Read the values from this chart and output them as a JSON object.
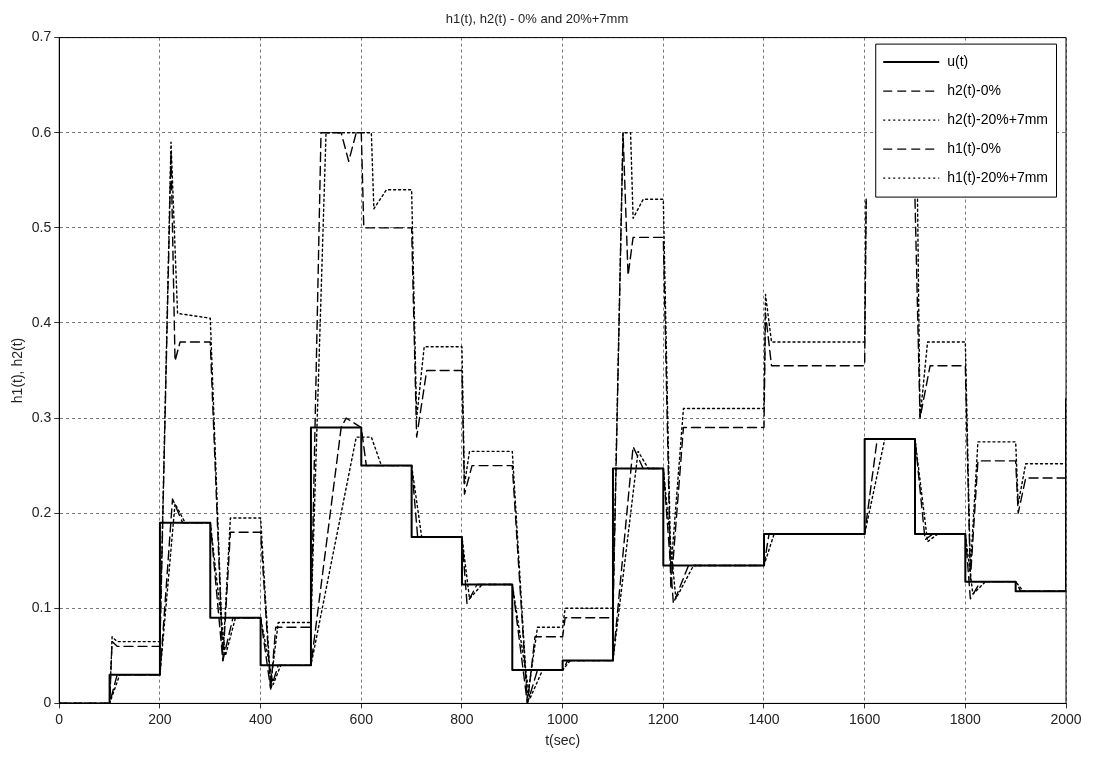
{
  "chart_data": {
    "type": "line",
    "title": "h1(t), h2(t) - 0% and 20%+7mm",
    "xlabel": "t(sec)",
    "ylabel": "h1(t), h2(t)",
    "xlim": [
      0,
      2000
    ],
    "xticks": [
      0,
      200,
      400,
      600,
      800,
      1000,
      1200,
      1400,
      1600,
      1800,
      2000
    ],
    "ylim": [
      0,
      0.7
    ],
    "yticks": [
      0,
      0.1,
      0.2,
      0.3,
      0.4,
      0.5,
      0.6,
      0.7
    ],
    "grid": true,
    "legend": "top right",
    "marker": "none",
    "series": [
      {
        "name": "u(t)",
        "color": "#000000",
        "line_style": "solid",
        "x": [
          0,
          100,
          100,
          200,
          200,
          300,
          300,
          400,
          400,
          500,
          500,
          600,
          600,
          700,
          700,
          800,
          800,
          900,
          900,
          1000,
          1000,
          1100,
          1100,
          1200,
          1200,
          1400,
          1400,
          1600,
          1600,
          1700,
          1700,
          1800,
          1800,
          1900,
          1900,
          2000,
          2000
        ],
        "values": [
          0,
          0,
          0.03,
          0.03,
          0.19,
          0.19,
          0.09,
          0.09,
          0.04,
          0.04,
          0.29,
          0.29,
          0.25,
          0.25,
          0.175,
          0.175,
          0.125,
          0.125,
          0.035,
          0.035,
          0.045,
          0.045,
          0.247,
          0.247,
          0.145,
          0.145,
          0.178,
          0.178,
          0.278,
          0.278,
          0.178,
          0.178,
          0.128,
          0.128,
          0.118,
          0.118,
          0.32
        ]
      },
      {
        "name": "h2(t)-0%",
        "color": "#000000",
        "line_style": "dashed",
        "x": [
          0,
          100,
          105,
          115,
          200,
          222,
          230,
          240,
          300,
          325,
          340,
          400,
          420,
          430,
          500,
          520,
          560,
          575,
          590,
          600,
          605,
          700,
          710,
          730,
          800,
          805,
          820,
          900,
          930,
          945,
          1000,
          1005,
          1100,
          1120,
          1130,
          1140,
          1200,
          1215,
          1240,
          1400,
          1403,
          1415,
          1600,
          1603,
          1697,
          1700,
          1710,
          1730,
          1800,
          1810,
          1825,
          1900,
          1905,
          1920,
          2000
        ],
        "values": [
          0,
          0,
          0.065,
          0.06,
          0.06,
          0.58,
          0.36,
          0.38,
          0.38,
          0.045,
          0.18,
          0.18,
          0.015,
          0.08,
          0.08,
          0.6,
          0.6,
          0.57,
          0.6,
          0.6,
          0.5,
          0.5,
          0.28,
          0.35,
          0.35,
          0.22,
          0.25,
          0.25,
          0,
          0.07,
          0.07,
          0.09,
          0.09,
          0.6,
          0.45,
          0.49,
          0.49,
          0.12,
          0.29,
          0.29,
          0.41,
          0.355,
          0.355,
          0.53,
          null,
          0.53,
          0.3,
          0.355,
          0.355,
          0.13,
          0.255,
          0.255,
          0.2,
          0.237,
          0.237
        ]
      },
      {
        "name": "h2(t)-20%+7mm",
        "color": "#000000",
        "line_style": "dotted",
        "x": [
          0,
          100,
          105,
          115,
          200,
          222,
          235,
          300,
          325,
          340,
          400,
          420,
          435,
          500,
          530,
          620,
          625,
          650,
          700,
          710,
          725,
          800,
          805,
          815,
          900,
          930,
          950,
          1000,
          1005,
          1100,
          1120,
          1135,
          1140,
          1160,
          1200,
          1215,
          1240,
          1400,
          1403,
          1415,
          1600,
          1603,
          1650,
          1705,
          1710,
          1725,
          1800,
          1810,
          1825,
          1900,
          1905,
          1920,
          2000
        ],
        "values": [
          0,
          0,
          0.07,
          0.065,
          0.065,
          0.59,
          0.41,
          0.405,
          0.05,
          0.195,
          0.195,
          0.02,
          0.085,
          0.085,
          0.6,
          0.6,
          0.52,
          0.54,
          0.54,
          0.3,
          0.375,
          0.375,
          0.23,
          0.265,
          0.265,
          0.005,
          0.08,
          0.08,
          0.1,
          0.1,
          0.6,
          0.6,
          0.51,
          0.53,
          0.53,
          0.14,
          0.31,
          0.31,
          0.43,
          0.38,
          0.38,
          0.53,
          null,
          0.53,
          0.3,
          0.38,
          0.38,
          0.14,
          0.275,
          0.275,
          0.21,
          0.252,
          0.252
        ]
      },
      {
        "name": "h1(t)-0%",
        "color": "#000000",
        "line_style": "dashed",
        "x": [
          0,
          100,
          115,
          200,
          225,
          245,
          300,
          325,
          345,
          400,
          420,
          435,
          500,
          560,
          570,
          600,
          610,
          700,
          712,
          800,
          810,
          830,
          900,
          930,
          950,
          1000,
          1010,
          1100,
          1140,
          1160,
          1200,
          1220,
          1250,
          1400,
          1410,
          1600,
          1625,
          1700,
          1720,
          1735,
          1800,
          1810,
          1830,
          1900,
          1910,
          2000
        ],
        "values": [
          0,
          0,
          0.03,
          0.03,
          0.215,
          0.19,
          0.19,
          0.045,
          0.09,
          0.09,
          0.015,
          0.04,
          0.04,
          0.29,
          0.3,
          0.29,
          0.25,
          0.25,
          0.175,
          0.175,
          0.105,
          0.125,
          0.125,
          0,
          0.035,
          0.035,
          0.045,
          0.045,
          0.27,
          0.247,
          0.247,
          0.105,
          0.145,
          0.145,
          0.178,
          0.178,
          0.278,
          0.278,
          0.172,
          0.178,
          0.178,
          0.11,
          0.128,
          0.128,
          0.118,
          0.118
        ]
      },
      {
        "name": "h1(t)-20%+7mm",
        "color": "#000000",
        "line_style": "dotted",
        "x": [
          0,
          100,
          120,
          200,
          230,
          250,
          300,
          330,
          350,
          400,
          425,
          440,
          500,
          590,
          620,
          640,
          700,
          720,
          800,
          815,
          840,
          900,
          935,
          960,
          1000,
          1015,
          1100,
          1150,
          1170,
          1200,
          1225,
          1260,
          1400,
          1420,
          1600,
          1640,
          1700,
          1725,
          1745,
          1800,
          1815,
          1840,
          1900,
          1915,
          2000
        ],
        "values": [
          0,
          0,
          0.03,
          0.03,
          0.21,
          0.19,
          0.19,
          0.05,
          0.09,
          0.09,
          0.02,
          0.04,
          0.04,
          0.28,
          0.28,
          0.25,
          0.25,
          0.175,
          0.175,
          0.11,
          0.125,
          0.125,
          0.005,
          0.035,
          0.035,
          0.045,
          0.045,
          0.265,
          0.247,
          0.247,
          0.11,
          0.145,
          0.145,
          0.178,
          0.178,
          0.278,
          0.278,
          0.17,
          0.178,
          0.178,
          0.115,
          0.128,
          0.128,
          0.118,
          0.118
        ]
      }
    ]
  }
}
